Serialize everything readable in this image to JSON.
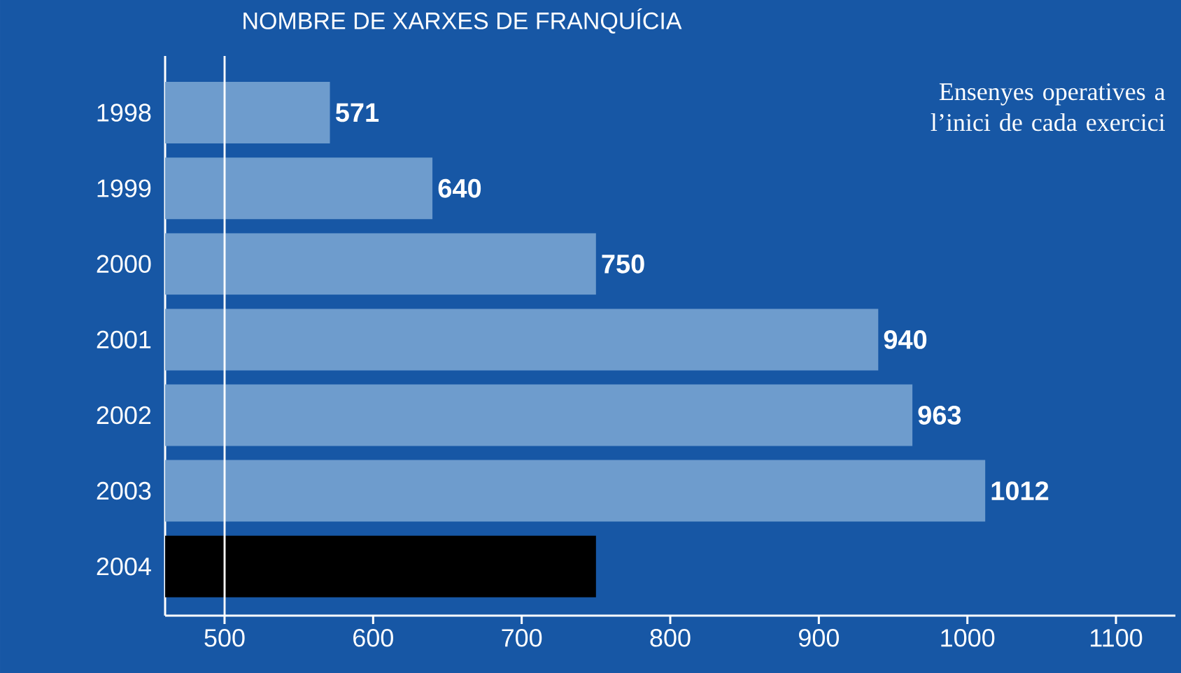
{
  "chart_data": {
    "type": "bar",
    "orientation": "horizontal",
    "title": "NOMBRE DE XARXES DE FRANQUÍCIA",
    "categories": [
      "1998",
      "1999",
      "2000",
      "2001",
      "2002",
      "2003",
      "2004"
    ],
    "values": [
      571,
      640,
      750,
      940,
      963,
      1012,
      750
    ],
    "value_labels": [
      "571",
      "640",
      "750",
      "940",
      "963",
      "1012",
      null
    ],
    "colors": [
      "#6e9ccd",
      "#6e9ccd",
      "#6e9ccd",
      "#6e9ccd",
      "#6e9ccd",
      "#6e9ccd",
      "#000000"
    ],
    "xlim": [
      460,
      1140
    ],
    "xticks": [
      500,
      600,
      700,
      800,
      900,
      1000,
      1100
    ],
    "ref_lines": [
      {
        "axis": "x",
        "value": 500,
        "color": "#ffffff"
      }
    ],
    "annotations": [
      "Ensenyes operatives a l’inici de cada exercici"
    ]
  }
}
